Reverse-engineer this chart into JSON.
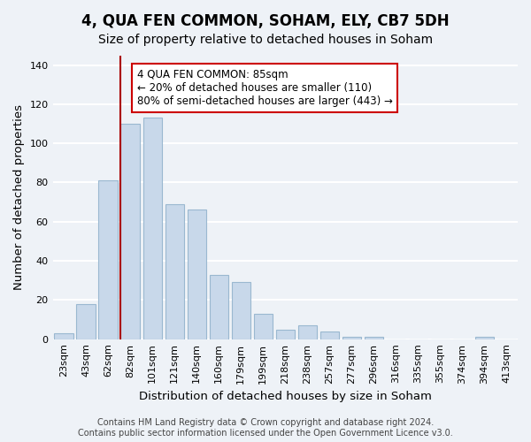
{
  "title": "4, QUA FEN COMMON, SOHAM, ELY, CB7 5DH",
  "subtitle": "Size of property relative to detached houses in Soham",
  "xlabel": "Distribution of detached houses by size in Soham",
  "ylabel": "Number of detached properties",
  "categories": [
    "23sqm",
    "43sqm",
    "62sqm",
    "82sqm",
    "101sqm",
    "121sqm",
    "140sqm",
    "160sqm",
    "179sqm",
    "199sqm",
    "218sqm",
    "238sqm",
    "257sqm",
    "277sqm",
    "296sqm",
    "316sqm",
    "335sqm",
    "355sqm",
    "374sqm",
    "394sqm",
    "413sqm"
  ],
  "values": [
    3,
    18,
    81,
    110,
    113,
    69,
    66,
    33,
    29,
    13,
    5,
    7,
    4,
    1,
    1,
    0,
    0,
    0,
    0,
    1,
    0
  ],
  "bar_color": "#c8d8ea",
  "bar_edge_color": "#9ab8d0",
  "vline_x_index": 3,
  "vline_color": "#aa0000",
  "annotation_line1": "4 QUA FEN COMMON: 85sqm",
  "annotation_line2": "← 20% of detached houses are smaller (110)",
  "annotation_line3": "80% of semi-detached houses are larger (443) →",
  "annotation_box_color": "#ffffff",
  "annotation_box_edge": "#cc0000",
  "ylim": [
    0,
    145
  ],
  "yticks": [
    0,
    20,
    40,
    60,
    80,
    100,
    120,
    140
  ],
  "footer_line1": "Contains HM Land Registry data © Crown copyright and database right 2024.",
  "footer_line2": "Contains public sector information licensed under the Open Government Licence v3.0.",
  "background_color": "#eef2f7",
  "grid_color": "#ffffff",
  "title_fontsize": 12,
  "subtitle_fontsize": 10,
  "label_fontsize": 9.5,
  "tick_fontsize": 8,
  "footer_fontsize": 7,
  "annotation_fontsize": 8.5
}
